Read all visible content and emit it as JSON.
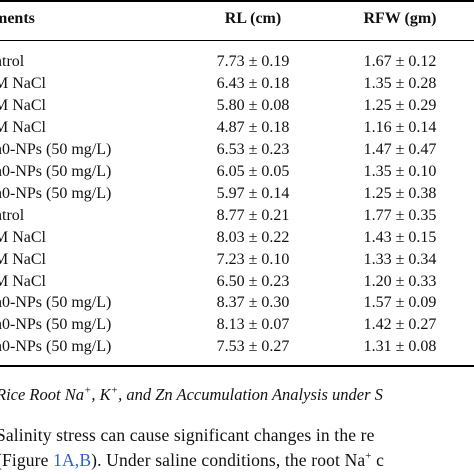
{
  "table": {
    "headers": {
      "treatment": "ments",
      "rl": "RL (cm)",
      "rfw": "RFW (gm)"
    },
    "rows": [
      {
        "treatment": "ntrol",
        "rl": "7.73 ± 0.19",
        "rfw": "1.67 ± 0.12"
      },
      {
        "treatment": "M NaCl",
        "rl": "6.43 ± 0.18",
        "rfw": "1.35 ± 0.28"
      },
      {
        "treatment": "M NaCl",
        "rl": "5.80 ± 0.08",
        "rfw": "1.25 ± 0.29"
      },
      {
        "treatment": "M NaCl",
        "rl": "4.87 ± 0.18",
        "rfw": "1.16 ± 0.14"
      },
      {
        "treatment": "n0-NPs (50 mg/L)",
        "rl": "6.53 ± 0.23",
        "rfw": "1.47 ± 0.47"
      },
      {
        "treatment": "n0-NPs (50 mg/L)",
        "rl": "6.05 ± 0.05",
        "rfw": "1.35 ± 0.10"
      },
      {
        "treatment": "n0-NPs (50 mg/L)",
        "rl": "5.97 ± 0.14",
        "rfw": "1.25 ± 0.38"
      },
      {
        "treatment": "ntrol",
        "rl": "8.77 ± 0.21",
        "rfw": "1.77 ± 0.35"
      },
      {
        "treatment": "M NaCl",
        "rl": "8.03 ± 0.22",
        "rfw": "1.43 ± 0.15"
      },
      {
        "treatment": "M NaCl",
        "rl": "7.23 ± 0.10",
        "rfw": "1.33 ± 0.34"
      },
      {
        "treatment": "M NaCl",
        "rl": "6.50 ± 0.23",
        "rfw": "1.20 ± 0.33"
      },
      {
        "treatment": "n0-NPs (50 mg/L)",
        "rl": "8.37 ± 0.30",
        "rfw": "1.57 ± 0.09"
      },
      {
        "treatment": "n0-NPs (50 mg/L)",
        "rl": "8.13 ± 0.07",
        "rfw": "1.42 ± 0.27"
      },
      {
        "treatment": "n0-NPs (50 mg/L)",
        "rl": "7.53 ± 0.27",
        "rfw": "1.31 ± 0.08"
      }
    ]
  },
  "caption": {
    "p1": "Rice Root Na",
    "sup1": "+",
    "p2": ", K",
    "sup2": "+",
    "p3": ", and Zn Accumulation Analysis under S"
  },
  "body_text": {
    "line1": "Salinity stress can cause significant changes in the re",
    "line2_a": "Figure ",
    "line2_link": "1A,B",
    "line2_b": "). Under saline conditions, the root Na",
    "line2_sup": "+",
    "line2_c": " c"
  }
}
